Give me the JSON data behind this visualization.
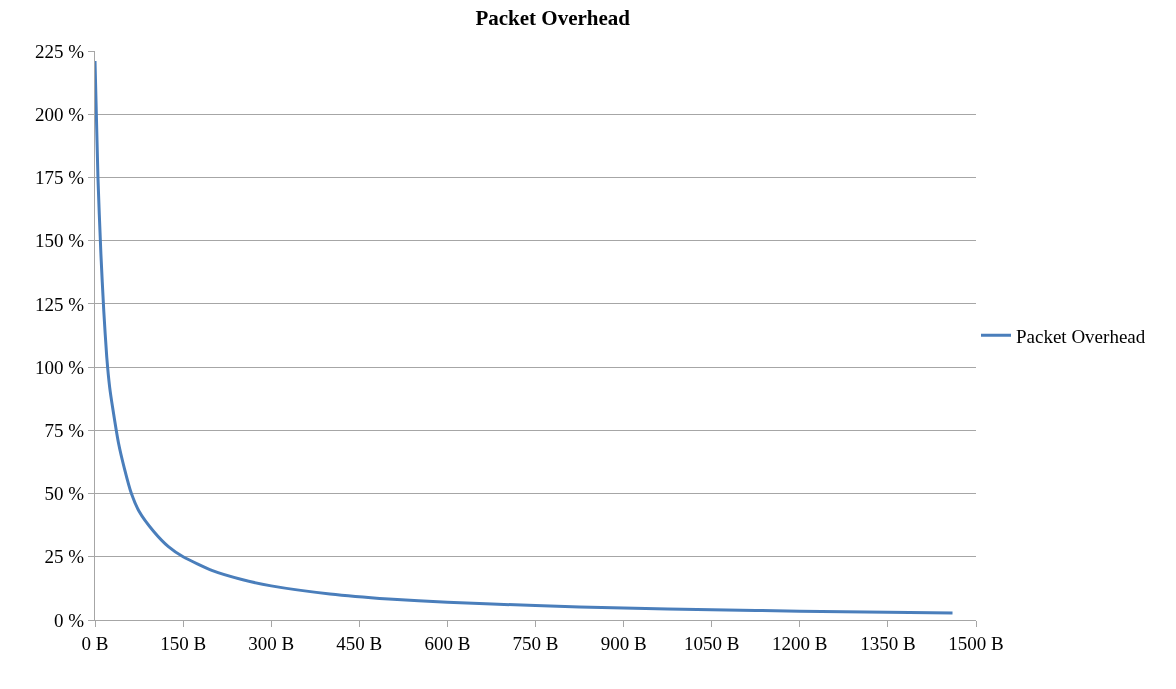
{
  "chart_data": {
    "type": "line",
    "title": "Packet Overhead",
    "x": [
      0,
      5,
      10,
      15,
      20,
      25,
      30,
      40,
      50,
      62,
      75,
      100,
      125,
      150,
      200,
      250,
      300,
      400,
      500,
      600,
      750,
      900,
      1050,
      1200,
      1350,
      1460
    ],
    "series": [
      {
        "name": "Packet Overhead",
        "color": "#4a7ebb",
        "values": [
          221,
          175,
          145,
          122,
          104,
          92,
          84,
          70,
          60,
          50,
          43,
          35,
          29,
          25,
          19.5,
          16,
          13.5,
          10.3,
          8.3,
          7,
          5.7,
          4.7,
          4.1,
          3.5,
          3.1,
          2.8
        ]
      }
    ],
    "xlim": [
      0,
      1500
    ],
    "xticks": [
      {
        "value": 0,
        "label": "0 B"
      },
      {
        "value": 150,
        "label": "150 B"
      },
      {
        "value": 300,
        "label": "300 B"
      },
      {
        "value": 450,
        "label": "450 B"
      },
      {
        "value": 600,
        "label": "600 B"
      },
      {
        "value": 750,
        "label": "750 B"
      },
      {
        "value": 900,
        "label": "900 B"
      },
      {
        "value": 1050,
        "label": "1050 B"
      },
      {
        "value": 1200,
        "label": "1200 B"
      },
      {
        "value": 1350,
        "label": "1350 B"
      },
      {
        "value": 1500,
        "label": "1500 B"
      }
    ],
    "ylim": [
      0,
      225
    ],
    "yticks": [
      {
        "value": 0,
        "label": "0 %"
      },
      {
        "value": 25,
        "label": "25 %"
      },
      {
        "value": 50,
        "label": "50 %"
      },
      {
        "value": 75,
        "label": "75 %"
      },
      {
        "value": 100,
        "label": "100 %"
      },
      {
        "value": 125,
        "label": "125 %"
      },
      {
        "value": 150,
        "label": "150 %"
      },
      {
        "value": 175,
        "label": "175 %"
      },
      {
        "value": 200,
        "label": "200 %"
      },
      {
        "value": 225,
        "label": "225 %"
      }
    ],
    "grid": "y",
    "legend": "right",
    "marker": "none",
    "line_style": "solid"
  }
}
